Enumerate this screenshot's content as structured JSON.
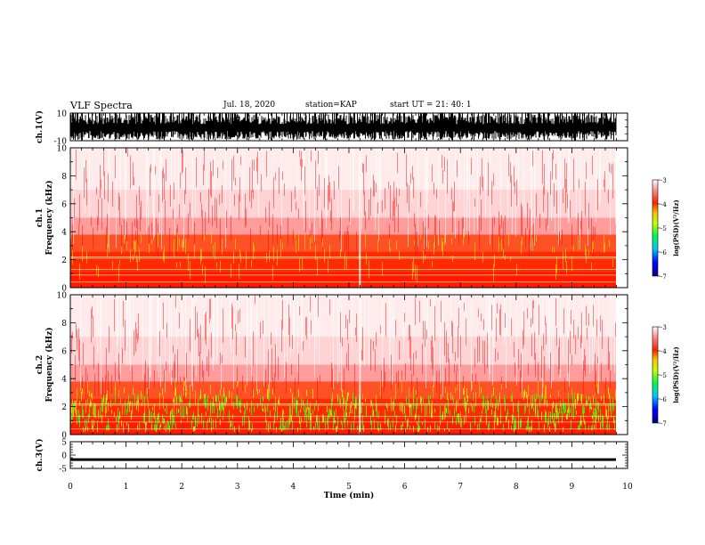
{
  "header": {
    "title": "VLF Spectra",
    "date": "Jul. 18, 2020",
    "station": "station=KAP",
    "start": "start UT = 21: 40: 1"
  },
  "chart_data": [
    {
      "type": "line",
      "panel": "ch1-waveform",
      "ylabel": "ch.1(V)",
      "ylim": [
        -10,
        10
      ],
      "yticks": [
        "10",
        "-10"
      ],
      "xlim": [
        0,
        10
      ]
    },
    {
      "type": "heatmap",
      "panel": "ch1-spectrogram",
      "ylabel": "ch.1\nFrequency (kHz)",
      "ylim": [
        0,
        10
      ],
      "yticks": [
        "0",
        "2",
        "4",
        "6",
        "8",
        "10"
      ],
      "xlim": [
        0,
        10
      ],
      "colorbar": {
        "label": "log(PSD)(V²/Hz)",
        "range": [
          -7,
          -3
        ],
        "ticks": [
          "-3",
          "-4",
          "-5",
          "-6",
          "-7"
        ]
      }
    },
    {
      "type": "heatmap",
      "panel": "ch2-spectrogram",
      "ylabel": "ch.2\nFrequency (kHz)",
      "ylim": [
        0,
        10
      ],
      "yticks": [
        "0",
        "2",
        "4",
        "6",
        "8",
        "10"
      ],
      "xlim": [
        0,
        10
      ],
      "colorbar": {
        "label": "log(PSD)(V²/Hz)",
        "range": [
          -7,
          -3
        ],
        "ticks": [
          "-3",
          "-4",
          "-5",
          "-6",
          "-7"
        ]
      }
    },
    {
      "type": "line",
      "panel": "ch3-waveform",
      "ylabel": "ch.3(V)",
      "ylim": [
        -5,
        5
      ],
      "yticks": [
        "5",
        "0",
        "-5"
      ],
      "xlim": [
        0,
        10
      ],
      "xlabel": "Time (min)",
      "xticks": [
        "0",
        "1",
        "2",
        "3",
        "4",
        "5",
        "6",
        "7",
        "8",
        "9",
        "10"
      ]
    }
  ],
  "colors": {
    "cmap": [
      "#000080",
      "#0000ff",
      "#00ffff",
      "#00ff00",
      "#ffff00",
      "#ff8000",
      "#ff0000",
      "#ffffff"
    ]
  }
}
